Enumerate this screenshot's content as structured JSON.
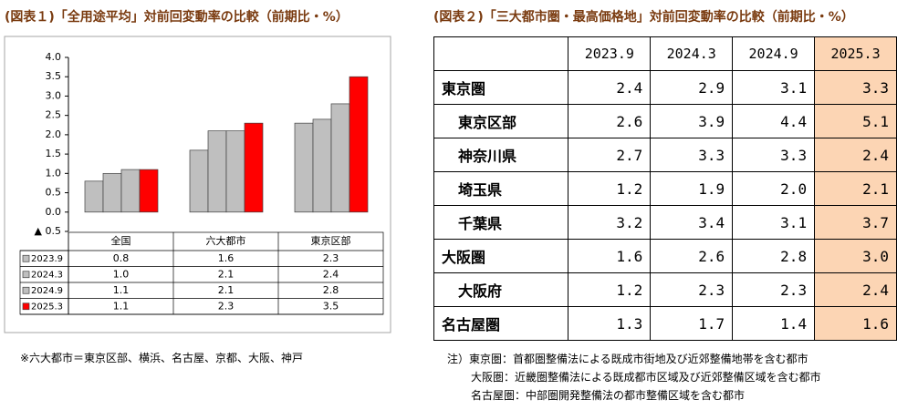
{
  "chart_data": {
    "type": "bar",
    "title": "(図表１)「全用途平均」対前回変動率の比較（前期比・%）",
    "categories": [
      "全国",
      "六大都市",
      "東京区部"
    ],
    "series": [
      {
        "name": "2023.9",
        "color": "#bfbfbf",
        "values": [
          0.8,
          1.6,
          2.3
        ],
        "value_labels": [
          "0.8",
          "1.6",
          "2.3"
        ]
      },
      {
        "name": "2024.3",
        "color": "#bfbfbf",
        "values": [
          1.0,
          2.1,
          2.4
        ],
        "value_labels": [
          "1.0",
          "2.1",
          "2.4"
        ]
      },
      {
        "name": "2024.9",
        "color": "#bfbfbf",
        "values": [
          1.1,
          2.1,
          2.8
        ],
        "value_labels": [
          "1.1",
          "2.1",
          "2.8"
        ]
      },
      {
        "name": "2025.3",
        "color": "#ff0000",
        "values": [
          1.1,
          2.3,
          3.5
        ],
        "value_labels": [
          "1.1",
          "2.3",
          "3.5"
        ]
      }
    ],
    "ylim": [
      -0.5,
      4.0
    ],
    "yticks": [
      {
        "value": 4.0,
        "label": "4.0"
      },
      {
        "value": 3.5,
        "label": "3.5"
      },
      {
        "value": 3.0,
        "label": "3.0"
      },
      {
        "value": 2.5,
        "label": "2.5"
      },
      {
        "value": 2.0,
        "label": "2.0"
      },
      {
        "value": 1.5,
        "label": "1.5"
      },
      {
        "value": 1.0,
        "label": "1.0"
      },
      {
        "value": 0.5,
        "label": "0.5"
      },
      {
        "value": 0.0,
        "label": "0.0"
      },
      {
        "value": -0.5,
        "label": "▲ 0.5"
      }
    ],
    "note": "※六大都市＝東京区部、横浜、名古屋、京都、大阪、神戸"
  },
  "table": {
    "title": "(図表２)「三大都市圏・最高価格地」対前回変動率の比較（前期比・%）",
    "columns": [
      "2023.9",
      "2024.3",
      "2024.9",
      "2025.3"
    ],
    "rows": [
      {
        "label": "東京圏",
        "values": [
          "2.4",
          "2.9",
          "3.1",
          "3.3"
        ]
      },
      {
        "label": "東京区部",
        "values": [
          "2.6",
          "3.9",
          "4.4",
          "5.1"
        ]
      },
      {
        "label": "神奈川県",
        "values": [
          "2.7",
          "3.3",
          "3.3",
          "2.4"
        ]
      },
      {
        "label": "埼玉県",
        "values": [
          "1.2",
          "1.9",
          "2.0",
          "2.1"
        ]
      },
      {
        "label": "千葉県",
        "values": [
          "3.2",
          "3.4",
          "3.1",
          "3.7"
        ]
      },
      {
        "label": "大阪圏",
        "values": [
          "1.6",
          "2.6",
          "2.8",
          "3.0"
        ]
      },
      {
        "label": "大阪府",
        "values": [
          "1.2",
          "2.3",
          "2.3",
          "2.4"
        ]
      },
      {
        "label": "名古屋圏",
        "values": [
          "1.3",
          "1.7",
          "1.4",
          "1.6"
        ]
      }
    ],
    "notes": [
      "注）東京圏：首都圏整備法による既成市街地及び近郊整備地帯を含む都市",
      "大阪圏：近畿圏整備法による既成都市区域及び近郊整備区域を含む都市",
      "名古屋圏：中部圏開発整備法の都市整備区域を含む都市"
    ]
  }
}
